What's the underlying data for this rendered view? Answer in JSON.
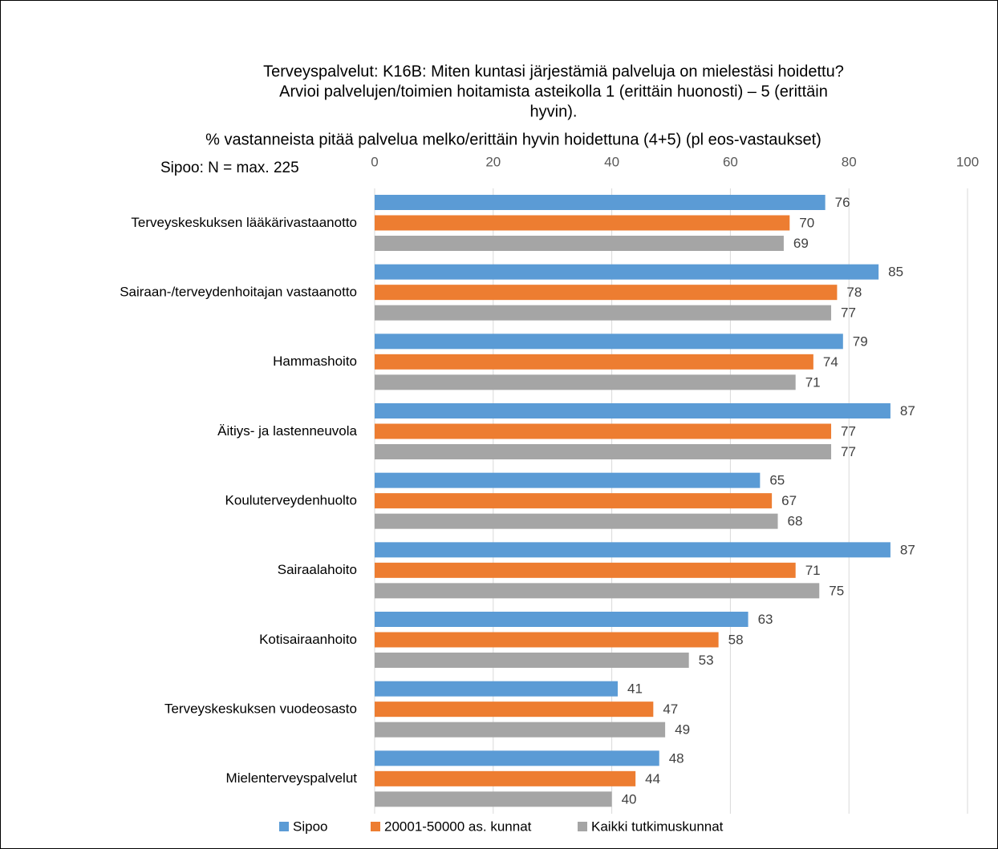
{
  "chart_data": {
    "type": "bar",
    "orientation": "horizontal",
    "title": [
      "Terveyspalvelut: K16B: Miten kuntasi järjestämiä palveluja on mielestäsi hoidettu?",
      "Arvioi palvelujen/toimien hoitamista asteikolla 1 (erittäin huonosti) – 5 (erittäin",
      "hyvin)."
    ],
    "subtitle": "% vastanneista pitää palvelua melko/erittäin hyvin hoidettuna (4+5) (pl eos-vastaukset)",
    "annotation": "Sipoo: N = max. 225",
    "categories": [
      "Terveyskeskuksen lääkärivastaanotto",
      "Sairaan-/terveydenhoitajan vastaanotto",
      "Hammashoito",
      "Äitiys- ja lastenneuvola",
      "Kouluterveydenhuolto",
      "Sairaalahoito",
      "Kotisairaanhoito",
      "Terveyskeskuksen vuodeosasto",
      "Mielenterveyspalvelut"
    ],
    "series": [
      {
        "name": "Sipoo",
        "color": "#5b9bd5",
        "values": [
          76,
          85,
          79,
          87,
          65,
          87,
          63,
          41,
          48
        ]
      },
      {
        "name": "20001-50000 as. kunnat",
        "color": "#ed7d31",
        "values": [
          70,
          78,
          74,
          77,
          67,
          71,
          58,
          47,
          44
        ]
      },
      {
        "name": "Kaikki tutkimuskunnat",
        "color": "#a5a5a5",
        "values": [
          69,
          77,
          71,
          77,
          68,
          75,
          53,
          49,
          40
        ]
      }
    ],
    "xlim": [
      0,
      100
    ],
    "xticks": [
      0,
      20,
      40,
      60,
      80,
      100
    ],
    "grid": true,
    "legend": "bottom"
  }
}
